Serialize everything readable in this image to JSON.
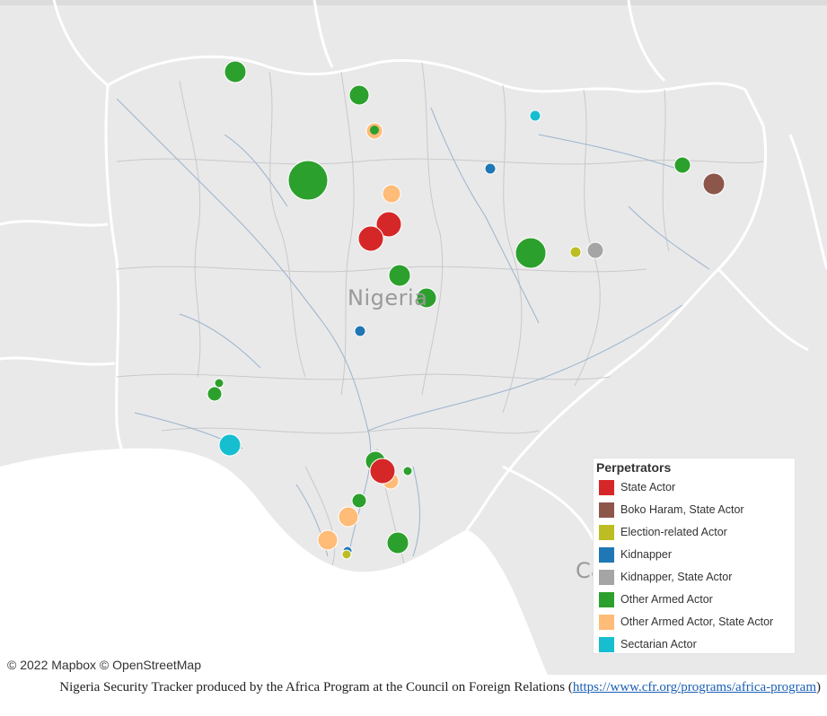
{
  "map": {
    "country_label": "Nigeria",
    "partial_label": "Ca",
    "attribution": "© 2022 Mapbox  © OpenStreetMap",
    "colors": {
      "land": "#e9e9ea",
      "sea": "#ffffff",
      "border": "#ffffff",
      "river": "#9bb3cc"
    }
  },
  "legend": {
    "title": "Perpetrators",
    "items": [
      {
        "label": "State Actor",
        "color": "#d62728"
      },
      {
        "label": "Boko Haram, State Actor",
        "color": "#8c564b"
      },
      {
        "label": "Election-related Actor",
        "color": "#bcbd22"
      },
      {
        "label": "Kidnapper",
        "color": "#1f77b4"
      },
      {
        "label": "Kidnapper, State Actor",
        "color": "#a5a5a5"
      },
      {
        "label": "Other Armed Actor",
        "color": "#2ca02c"
      },
      {
        "label": "Other Armed Actor, State Actor",
        "color": "#ffbb78"
      },
      {
        "label": "Sectarian Actor",
        "color": "#17becf"
      }
    ]
  },
  "caption": {
    "text": "Nigeria Security Tracker produced by the Africa Program at the Council on Foreign Relations (",
    "link": "https://www.cfr.org/programs/africa-program",
    "close": ")"
  }
}
